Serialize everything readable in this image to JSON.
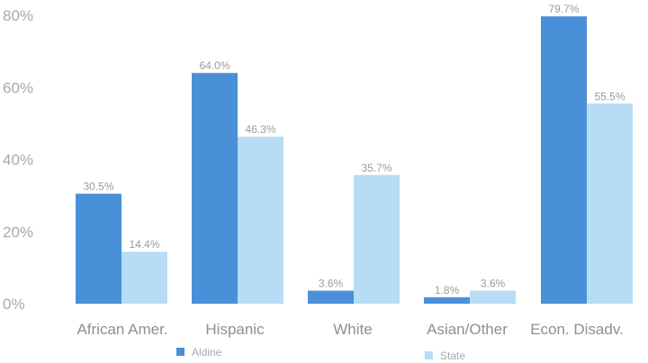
{
  "chart_data": {
    "type": "bar",
    "categories": [
      "African Amer.",
      "Hispanic",
      "White",
      "Asian/Other",
      "Econ. Disadv."
    ],
    "series": [
      {
        "name": "Aldine",
        "values": [
          30.5,
          64.0,
          3.6,
          1.8,
          79.7
        ],
        "labels": [
          "30.5%",
          "64.0%",
          "3.6%",
          "1.8%",
          "79.7%"
        ],
        "color": "#4a90d9"
      },
      {
        "name": "State",
        "values": [
          14.4,
          46.3,
          35.7,
          3.6,
          55.5
        ],
        "labels": [
          "14.4%",
          "46.3%",
          "35.7%",
          "3.6%",
          "55.5%"
        ],
        "color": "#b7dcf5"
      }
    ],
    "ylim": [
      0,
      80
    ],
    "yticks": [
      "0%",
      "20%",
      "40%",
      "60%",
      "80%"
    ],
    "ytick_values": [
      0,
      20,
      40,
      60,
      80
    ],
    "grid": false,
    "legend_position": "bottom"
  }
}
